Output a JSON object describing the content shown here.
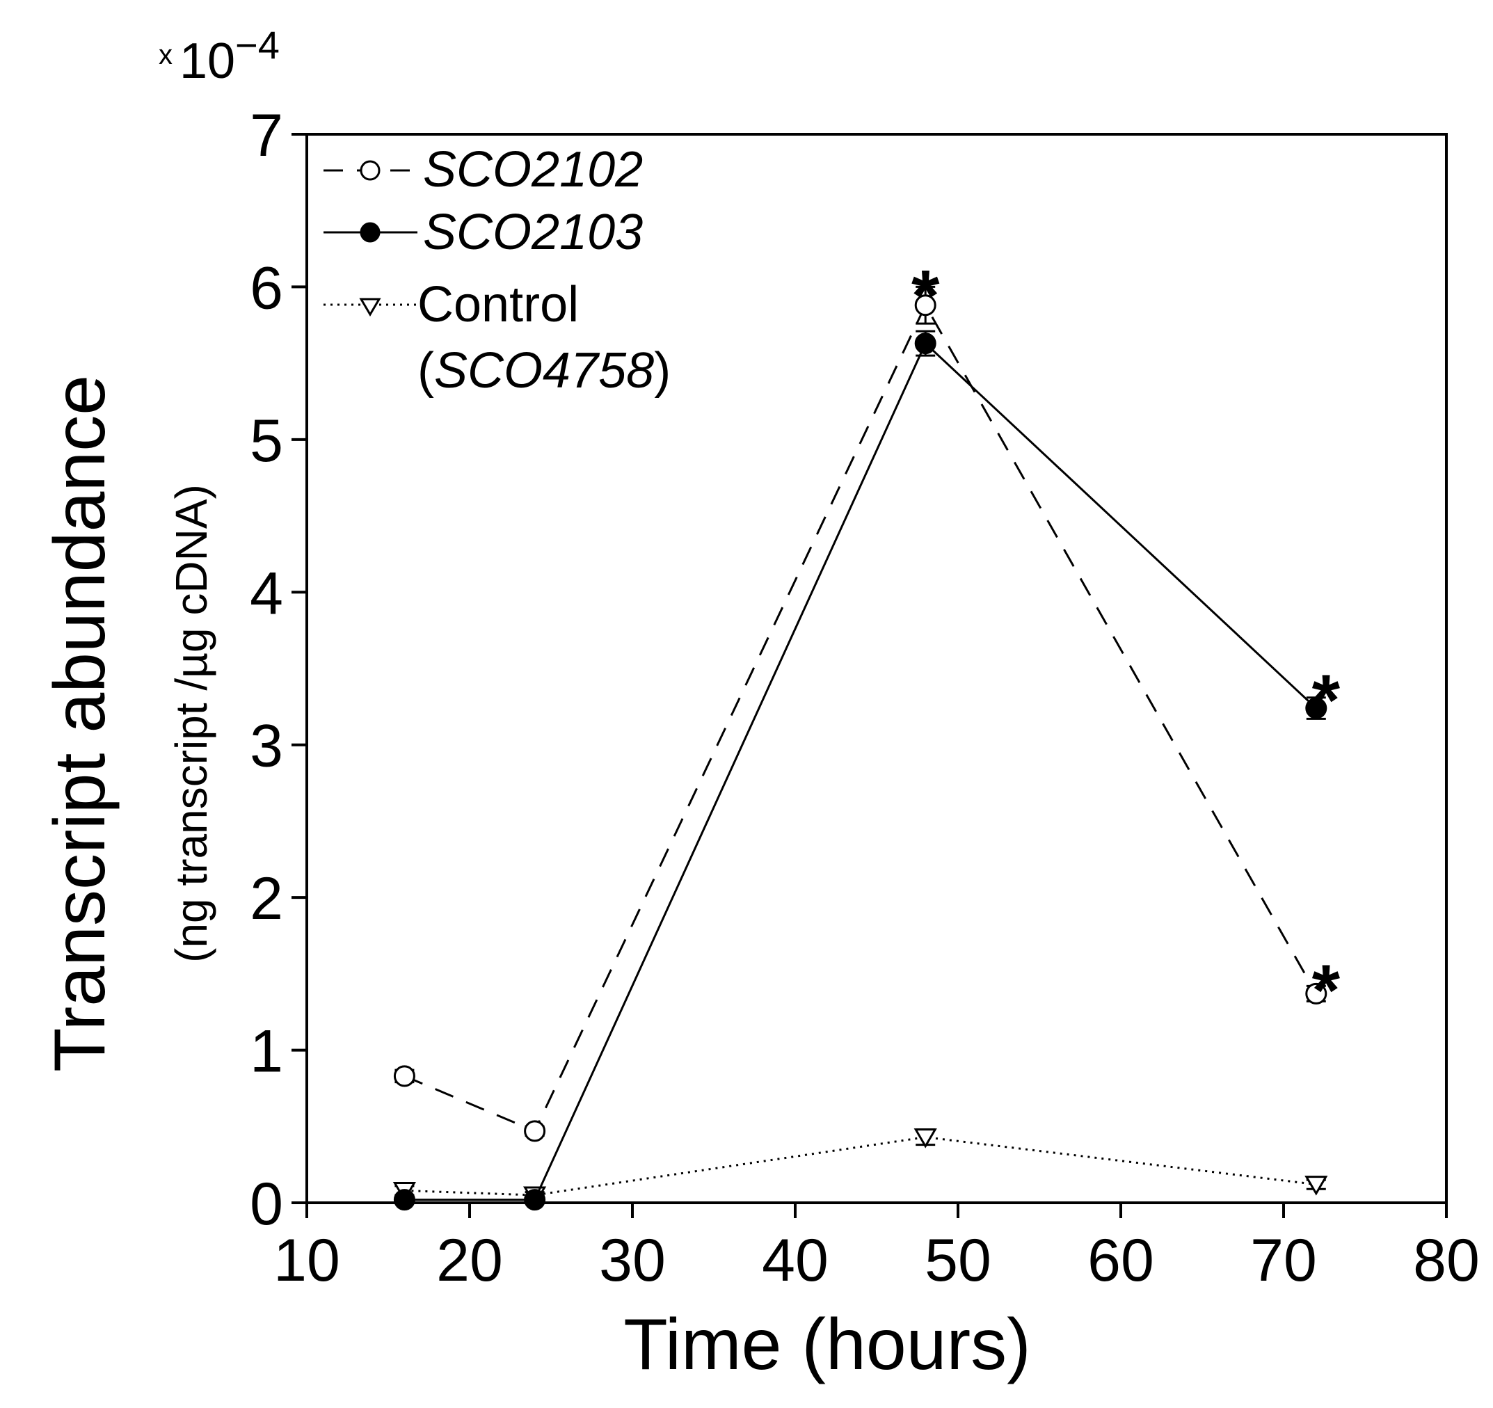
{
  "chart_data": {
    "type": "line",
    "xlabel": "Time (hours)",
    "ylabel": "Transcript abundance",
    "ylabel_sub": "(ng transcript /µg cDNA)",
    "y_multiplier": {
      "x": "x",
      "base": "10",
      "exponent": "−4"
    },
    "xlim": [
      10,
      80
    ],
    "ylim": [
      0,
      7
    ],
    "x_ticks": [
      10,
      20,
      30,
      40,
      50,
      60,
      70,
      80
    ],
    "y_ticks": [
      0,
      1,
      2,
      3,
      4,
      5,
      6,
      7
    ],
    "legend_position": "top-left",
    "series": [
      {
        "name": "SCO2102",
        "marker": "open-circle",
        "line": "dashed",
        "x": [
          16,
          24,
          48,
          72
        ],
        "y": [
          0.83,
          0.47,
          5.88,
          1.37
        ],
        "err": [
          0.04,
          0.03,
          0.12,
          0.05
        ]
      },
      {
        "name": "SCO2103",
        "marker": "filled-circle",
        "line": "solid",
        "x": [
          16,
          24,
          48,
          72
        ],
        "y": [
          0.02,
          0.02,
          5.63,
          3.24
        ],
        "err": [
          0.02,
          0.02,
          0.08,
          0.07
        ]
      },
      {
        "name": "Control",
        "name_extra": "SCO4758",
        "marker": "open-triangle-down",
        "line": "dotted",
        "x": [
          16,
          24,
          48,
          72
        ],
        "y": [
          0.08,
          0.05,
          0.43,
          0.12
        ],
        "err": [
          0.03,
          0.02,
          0.05,
          0.03
        ]
      }
    ],
    "annotations": [
      {
        "text": "*",
        "x": 48,
        "y": 6.1
      },
      {
        "text": "*",
        "x": 72.6,
        "y": 3.45
      },
      {
        "text": "*",
        "x": 72.6,
        "y": 1.55
      }
    ]
  }
}
